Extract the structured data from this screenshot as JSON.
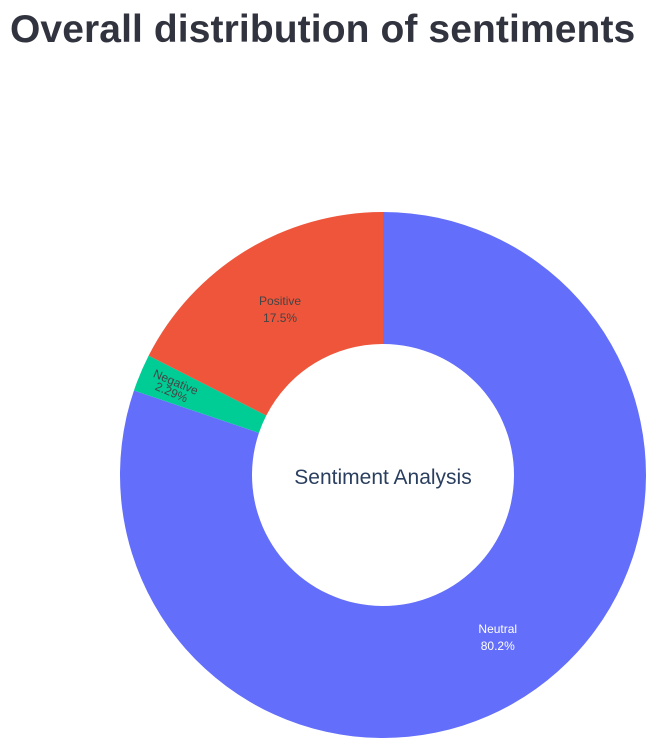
{
  "page": {
    "title": "Overall distribution of sentiments"
  },
  "chart_data": {
    "type": "pie",
    "hole": true,
    "center_text": "Sentiment Analysis",
    "categories": [
      "Neutral",
      "Negative",
      "Positive"
    ],
    "values": [
      80.2,
      2.29,
      17.5
    ],
    "value_labels": [
      "80.2%",
      "2.29%",
      "17.5%"
    ],
    "colors": [
      "#636efa",
      "#00cc96",
      "#ef553b"
    ],
    "label_colors": [
      "#ffffff",
      "#444444",
      "#444444"
    ]
  }
}
